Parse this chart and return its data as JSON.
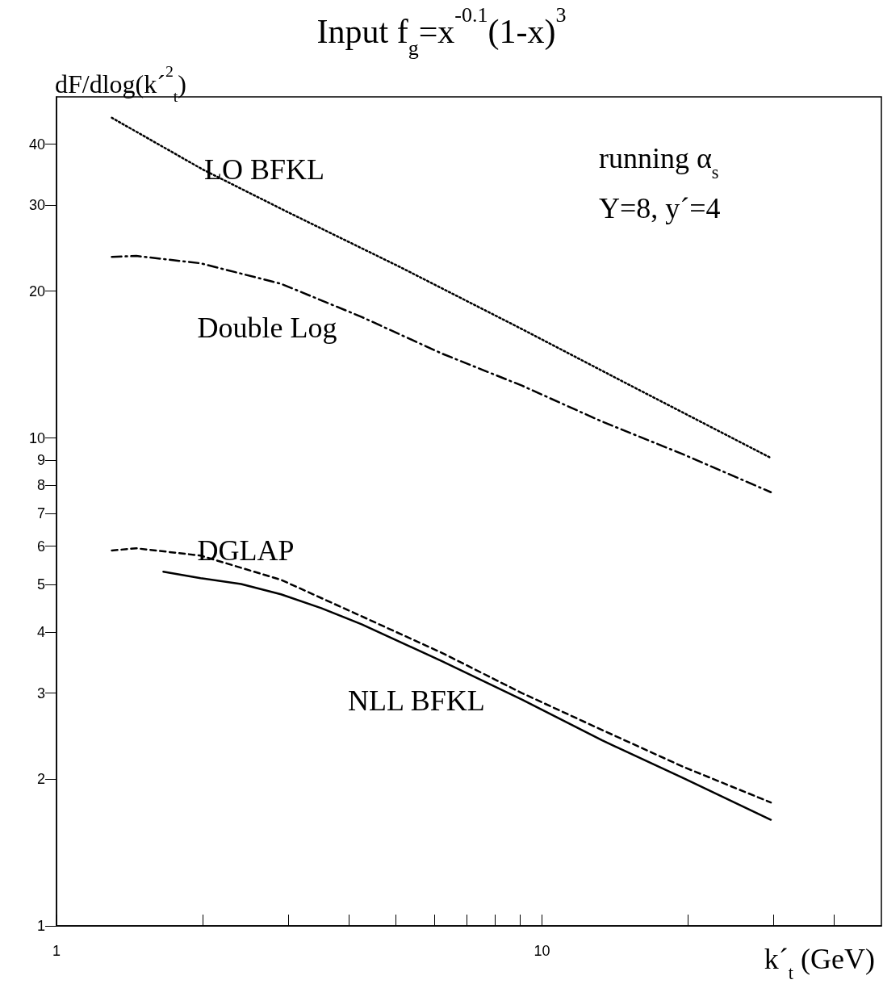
{
  "chart_data": {
    "type": "line",
    "title": "Input f$_{g}$=x$^{-0.1}$(1-x)$^{3}$",
    "xlabel": "k´$_{t}$ (GeV)",
    "ylabel": "dF/dlog(k´$^{2}$$_{t}$)",
    "log": "xy",
    "xlim": [
      1,
      50
    ],
    "xticks": [
      1,
      {
        "value": 2,
        "label": null
      },
      {
        "value": 3,
        "label": null
      },
      {
        "value": 4,
        "label": null
      },
      {
        "value": 5,
        "label": null
      },
      {
        "value": 6,
        "label": null
      },
      {
        "value": 7,
        "label": null
      },
      {
        "value": 8,
        "label": null
      },
      {
        "value": 9,
        "label": null
      },
      10,
      {
        "value": 20,
        "label": null
      },
      {
        "value": 30,
        "label": null
      },
      {
        "value": 40,
        "label": null
      }
    ],
    "ylim": [
      1,
      50
    ],
    "yticks": [
      1,
      2,
      3,
      4,
      5,
      6,
      7,
      8,
      9,
      10,
      20,
      30,
      40
    ],
    "grid": false,
    "marker": "none",
    "series": [
      {
        "name": "LO BFKL",
        "color": "#000000",
        "line_style": "dotted",
        "x": [
          1.3,
          2.0,
          3.0,
          5.1,
          9.0,
          15.0,
          29.6
        ],
        "values": [
          45.3,
          35.5,
          29.0,
          22.4,
          16.8,
          12.9,
          9.1
        ]
      },
      {
        "name": "Double Log",
        "color": "#000000",
        "line_style": "dashdot",
        "x": [
          1.3,
          1.46,
          1.98,
          2.9,
          4.25,
          6.21,
          9.09,
          13.3,
          19.5,
          29.6
        ],
        "values": [
          23.5,
          23.6,
          22.8,
          20.7,
          17.7,
          14.9,
          12.8,
          10.8,
          9.26,
          7.74
        ]
      },
      {
        "name": "DGLAP",
        "color": "#000000",
        "line_style": "dashed",
        "x": [
          1.3,
          1.46,
          1.98,
          2.9,
          4.25,
          6.21,
          9.09,
          13.3,
          19.5,
          29.6
        ],
        "values": [
          5.88,
          5.94,
          5.74,
          5.12,
          4.31,
          3.63,
          3.0,
          2.52,
          2.12,
          1.79
        ]
      },
      {
        "name": "NLL BFKL",
        "color": "#000000",
        "line_style": "solid",
        "x": [
          1.66,
          1.98,
          2.4,
          2.9,
          3.51,
          4.25,
          6.21,
          9.09,
          13.3,
          19.5,
          29.6
        ],
        "values": [
          5.32,
          5.16,
          5.02,
          4.78,
          4.48,
          4.15,
          3.49,
          2.91,
          2.4,
          2.01,
          1.65
        ]
      }
    ],
    "annotations": [
      "running α$_{s}$",
      "Y=8, y´=4"
    ]
  }
}
